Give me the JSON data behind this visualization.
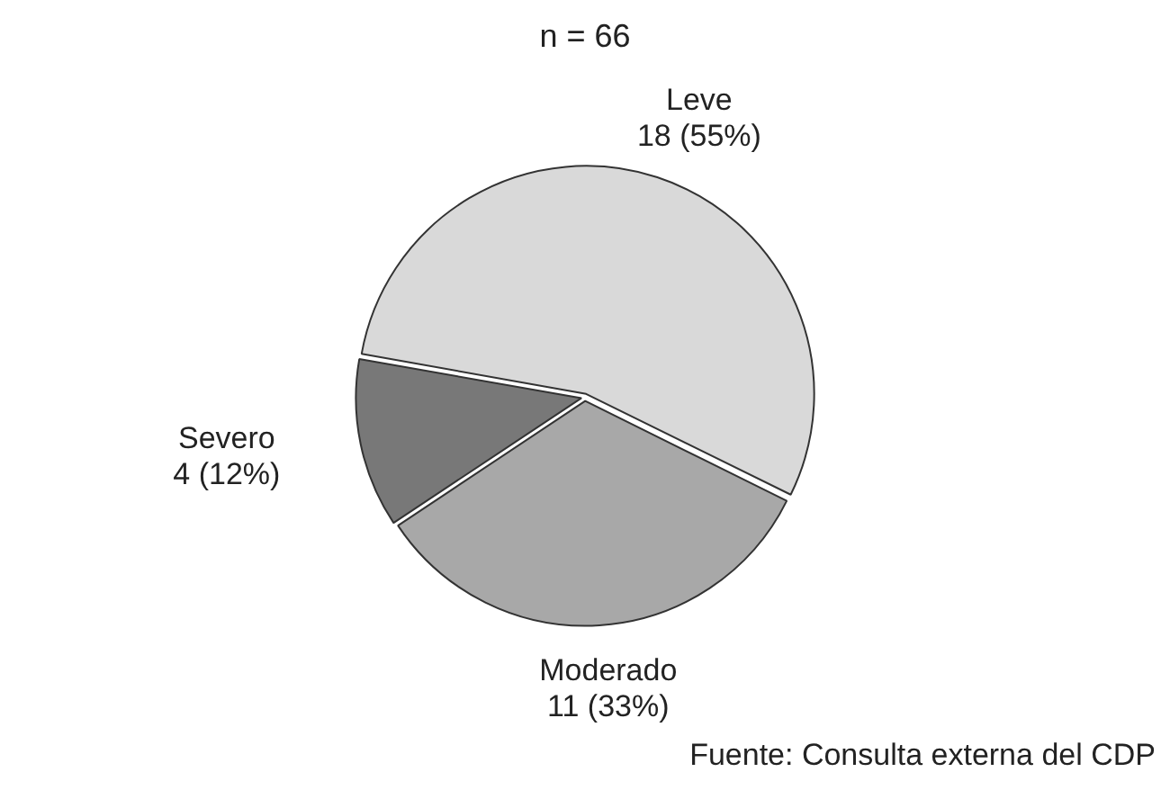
{
  "chart_data": {
    "type": "pie",
    "title": "n = 66",
    "categories": [
      "Leve",
      "Moderado",
      "Severo"
    ],
    "values": [
      18,
      11,
      4
    ],
    "value_labels": [
      "18 (55%)",
      "11 (33%)",
      "4 (12%)"
    ],
    "colors": [
      "#d9d9d9",
      "#a8a8a8",
      "#787878"
    ],
    "legend": false,
    "annotations": [
      "Fuente: Consulta externa del CDP"
    ]
  }
}
